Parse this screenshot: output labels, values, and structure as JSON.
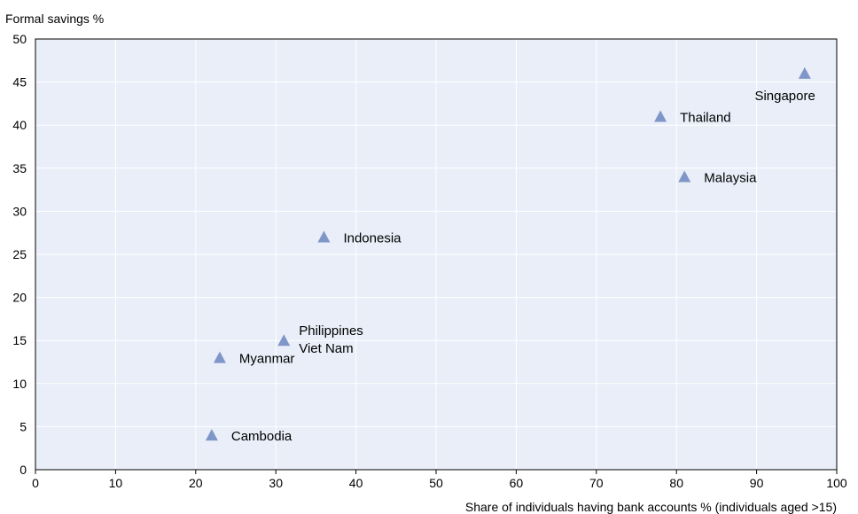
{
  "chart_data": {
    "type": "scatter",
    "title": "",
    "ylabel": "Formal savings %",
    "xlabel": "Share of individuals having bank accounts % (individuals aged >15)",
    "xlim": [
      0,
      100
    ],
    "ylim": [
      0,
      50
    ],
    "xticks": [
      0,
      10,
      20,
      30,
      40,
      50,
      60,
      70,
      80,
      90,
      100
    ],
    "yticks": [
      0,
      5,
      10,
      15,
      20,
      25,
      30,
      35,
      40,
      45,
      50
    ],
    "grid": true,
    "marker": "triangle",
    "colors": {
      "plot_bg": "#e9eef8",
      "marker": "#7f96c8",
      "frame": "#000000"
    },
    "points": [
      {
        "label": "Singapore",
        "x": 96,
        "y": 46
      },
      {
        "label": "Thailand",
        "x": 78,
        "y": 41
      },
      {
        "label": "Malaysia",
        "x": 81,
        "y": 34
      },
      {
        "label": "Indonesia",
        "x": 36,
        "y": 27
      },
      {
        "label": "Philippines",
        "x": 31,
        "y": 15
      },
      {
        "label": "Viet Nam",
        "x": 31,
        "y": 15
      },
      {
        "label": "Myanmar",
        "x": 23,
        "y": 13
      },
      {
        "label": "Cambodia",
        "x": 22,
        "y": 4
      }
    ]
  }
}
